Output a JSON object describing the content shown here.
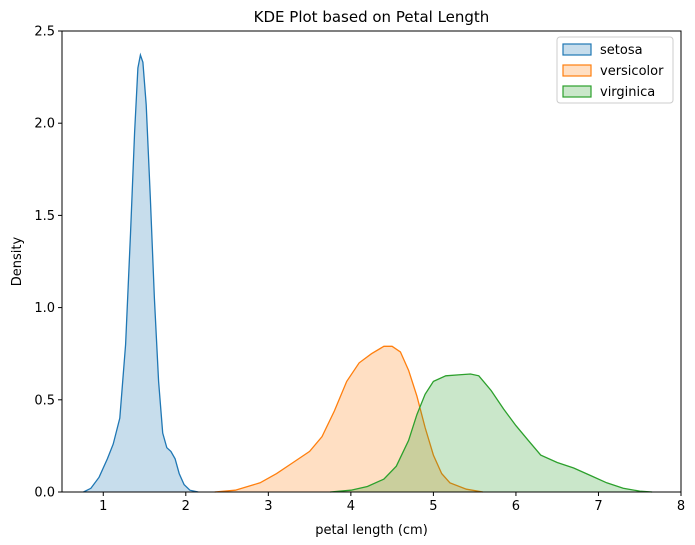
{
  "chart_data": {
    "type": "area",
    "title": "KDE Plot based on Petal Length",
    "xlabel": "petal length (cm)",
    "ylabel": "Density",
    "xlim": [
      0.5,
      8
    ],
    "ylim": [
      0,
      2.5
    ],
    "xticks": [
      "1",
      "2",
      "3",
      "4",
      "5",
      "6",
      "7",
      "8"
    ],
    "yticks": [
      "0.0",
      "0.5",
      "1.0",
      "1.5",
      "2.0",
      "2.5"
    ],
    "grid": false,
    "legend_position": "top-right",
    "series": [
      {
        "name": "setosa",
        "color": "#1f77b4",
        "points": [
          [
            0.76,
            0.0
          ],
          [
            0.85,
            0.02
          ],
          [
            0.95,
            0.08
          ],
          [
            1.05,
            0.18
          ],
          [
            1.12,
            0.26
          ],
          [
            1.2,
            0.4
          ],
          [
            1.27,
            0.8
          ],
          [
            1.33,
            1.4
          ],
          [
            1.38,
            1.95
          ],
          [
            1.42,
            2.3
          ],
          [
            1.45,
            2.37
          ],
          [
            1.48,
            2.33
          ],
          [
            1.52,
            2.1
          ],
          [
            1.57,
            1.6
          ],
          [
            1.62,
            1.05
          ],
          [
            1.67,
            0.6
          ],
          [
            1.72,
            0.32
          ],
          [
            1.77,
            0.24
          ],
          [
            1.82,
            0.22
          ],
          [
            1.87,
            0.18
          ],
          [
            1.92,
            0.1
          ],
          [
            1.98,
            0.04
          ],
          [
            2.05,
            0.01
          ],
          [
            2.15,
            0.0
          ]
        ]
      },
      {
        "name": "versicolor",
        "color": "#ff7f0e",
        "points": [
          [
            2.35,
            0.0
          ],
          [
            2.6,
            0.01
          ],
          [
            2.9,
            0.05
          ],
          [
            3.1,
            0.1
          ],
          [
            3.3,
            0.16
          ],
          [
            3.5,
            0.22
          ],
          [
            3.65,
            0.3
          ],
          [
            3.8,
            0.44
          ],
          [
            3.95,
            0.6
          ],
          [
            4.1,
            0.7
          ],
          [
            4.25,
            0.75
          ],
          [
            4.4,
            0.79
          ],
          [
            4.5,
            0.79
          ],
          [
            4.6,
            0.76
          ],
          [
            4.7,
            0.66
          ],
          [
            4.8,
            0.52
          ],
          [
            4.9,
            0.35
          ],
          [
            5.0,
            0.2
          ],
          [
            5.1,
            0.1
          ],
          [
            5.2,
            0.05
          ],
          [
            5.4,
            0.015
          ],
          [
            5.6,
            0.0
          ]
        ]
      },
      {
        "name": "virginica",
        "color": "#2ca02c",
        "points": [
          [
            3.75,
            0.0
          ],
          [
            4.0,
            0.01
          ],
          [
            4.2,
            0.03
          ],
          [
            4.4,
            0.07
          ],
          [
            4.55,
            0.14
          ],
          [
            4.7,
            0.28
          ],
          [
            4.8,
            0.42
          ],
          [
            4.9,
            0.53
          ],
          [
            5.0,
            0.6
          ],
          [
            5.15,
            0.63
          ],
          [
            5.3,
            0.635
          ],
          [
            5.45,
            0.64
          ],
          [
            5.55,
            0.63
          ],
          [
            5.7,
            0.55
          ],
          [
            5.85,
            0.45
          ],
          [
            6.0,
            0.36
          ],
          [
            6.15,
            0.28
          ],
          [
            6.3,
            0.2
          ],
          [
            6.5,
            0.16
          ],
          [
            6.7,
            0.13
          ],
          [
            6.9,
            0.09
          ],
          [
            7.1,
            0.05
          ],
          [
            7.3,
            0.02
          ],
          [
            7.5,
            0.005
          ],
          [
            7.65,
            0.0
          ]
        ]
      }
    ]
  }
}
